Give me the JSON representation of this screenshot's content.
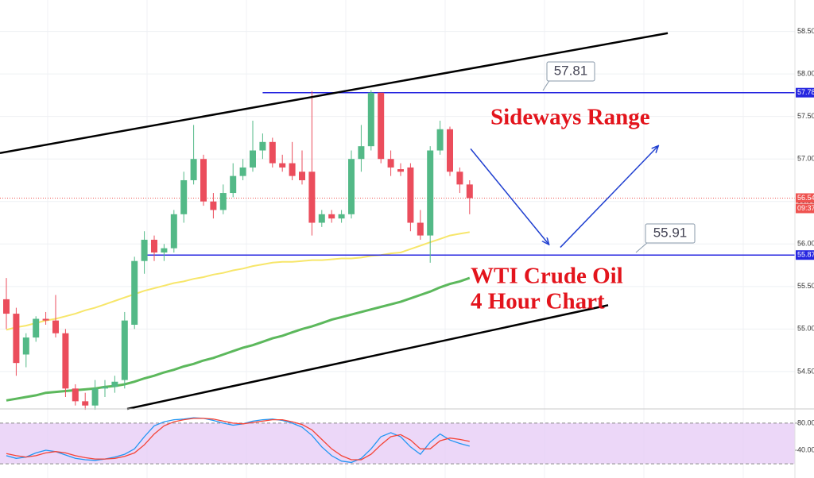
{
  "chart_data": [
    {
      "type": "candlestick",
      "open": [
        55.35,
        55.18,
        54.7,
        54.9,
        55.12,
        55.1,
        54.95,
        54.3,
        54.15,
        54.1,
        54.3,
        54.32,
        54.4,
        55.05,
        55.8,
        56.05,
        55.9,
        55.95,
        56.35,
        56.75,
        57.0,
        56.5,
        56.4,
        56.6,
        56.8,
        56.9,
        57.1,
        57.2,
        56.95,
        56.95,
        56.85,
        56.85,
        56.25,
        56.35,
        56.3,
        56.35,
        57.0,
        57.15,
        57.78,
        57.0,
        56.88,
        56.9,
        56.25,
        56.1,
        57.1,
        57.35,
        56.85,
        56.7
      ],
      "high": [
        55.6,
        55.25,
        54.95,
        55.15,
        55.2,
        55.4,
        55.0,
        54.35,
        54.25,
        54.4,
        54.4,
        54.45,
        55.2,
        55.85,
        56.15,
        56.1,
        56.0,
        56.4,
        56.85,
        57.4,
        57.05,
        56.6,
        56.7,
        56.95,
        57.0,
        57.45,
        57.3,
        57.25,
        57.05,
        57.2,
        57.1,
        57.8,
        56.4,
        56.4,
        56.4,
        57.1,
        57.4,
        57.81,
        57.78,
        57.1,
        56.95,
        56.95,
        56.4,
        57.15,
        57.45,
        57.38,
        56.9,
        56.75
      ],
      "low": [
        55.0,
        54.45,
        54.55,
        54.85,
        55.05,
        54.9,
        54.2,
        54.1,
        54.05,
        54.05,
        54.2,
        54.25,
        54.3,
        55.0,
        55.65,
        55.8,
        55.8,
        55.9,
        56.25,
        56.7,
        56.45,
        56.3,
        56.35,
        56.55,
        56.75,
        56.85,
        57.0,
        56.9,
        56.85,
        56.75,
        56.7,
        56.1,
        56.2,
        56.25,
        56.25,
        56.3,
        56.85,
        57.1,
        56.95,
        56.8,
        56.8,
        56.15,
        56.05,
        55.78,
        57.05,
        56.8,
        56.6,
        56.35
      ],
      "close": [
        55.18,
        54.6,
        54.9,
        55.12,
        55.1,
        54.95,
        54.3,
        54.15,
        54.1,
        54.3,
        54.32,
        54.38,
        55.1,
        55.8,
        56.05,
        55.9,
        55.95,
        56.35,
        56.75,
        57.0,
        56.5,
        56.4,
        56.6,
        56.8,
        56.9,
        57.1,
        57.2,
        56.95,
        56.9,
        56.8,
        56.75,
        56.25,
        56.35,
        56.3,
        56.35,
        57.0,
        57.15,
        57.78,
        57.0,
        56.9,
        56.85,
        56.25,
        56.1,
        57.1,
        57.35,
        56.85,
        56.7,
        56.54
      ],
      "up_color": "#53b987",
      "down_color": "#eb4d5c",
      "moving_averages": [
        {
          "color": "#f7e66a",
          "values": [
            54.99,
            55.02,
            55.04,
            55.07,
            55.1,
            55.12,
            55.15,
            55.18,
            55.22,
            55.25,
            55.29,
            55.33,
            55.37,
            55.41,
            55.45,
            55.48,
            55.51,
            55.54,
            55.56,
            55.59,
            55.61,
            55.64,
            55.66,
            55.69,
            55.71,
            55.74,
            55.76,
            55.78,
            55.79,
            55.79,
            55.8,
            55.81,
            55.81,
            55.82,
            55.83,
            55.83,
            55.84,
            55.86,
            55.87,
            55.89,
            55.9,
            55.94,
            55.98,
            56.02,
            56.06,
            56.1,
            56.12,
            56.14
          ]
        },
        {
          "color": "#5cb85c",
          "values": [
            54.16,
            54.18,
            54.2,
            54.22,
            54.25,
            54.26,
            54.27,
            54.28,
            54.29,
            54.3,
            54.32,
            54.33,
            54.35,
            54.38,
            54.42,
            54.45,
            54.49,
            54.52,
            54.56,
            54.59,
            54.63,
            54.66,
            54.7,
            54.74,
            54.78,
            54.81,
            54.85,
            54.89,
            54.92,
            54.96,
            55.0,
            55.03,
            55.07,
            55.11,
            55.14,
            55.17,
            55.2,
            55.23,
            55.26,
            55.29,
            55.32,
            55.36,
            55.4,
            55.44,
            55.49,
            55.53,
            55.56,
            55.6
          ]
        }
      ],
      "ylim": [
        54.06,
        58.87
      ],
      "yticks": [
        {
          "value": 54.5,
          "label": "54.50"
        },
        {
          "value": 55,
          "label": "55.00"
        },
        {
          "value": 55.5,
          "label": "55.50"
        },
        {
          "value": 56,
          "label": "56.00"
        },
        {
          "value": 56.5,
          "label": "56.50"
        },
        {
          "value": 57,
          "label": "57.00"
        },
        {
          "value": 57.5,
          "label": "57.50"
        },
        {
          "value": 58,
          "label": "58.00"
        },
        {
          "value": 58.5,
          "label": "58.50"
        }
      ],
      "grid": true,
      "last_price": {
        "value": 56.54,
        "countdown": "09:37",
        "color": "#ef5350"
      },
      "horizontal_lines": [
        {
          "value": 57.78,
          "from": 26,
          "color": "#2626e0"
        },
        {
          "value": 55.87,
          "from": 14.3,
          "color": "#2626e0"
        }
      ],
      "trend_lines": [
        {
          "from": [
            -0.65,
            57.07
          ],
          "to": [
            67.1,
            58.48
          ],
          "color": "#000000"
        },
        {
          "from": [
            12.26,
            54.06
          ],
          "to": [
            61.05,
            55.28
          ],
          "color": "#000000"
        }
      ],
      "arrows": [
        {
          "from": [
            47.1,
            57.12
          ],
          "to": [
            55,
            56.0
          ],
          "color": "#1f3fd0"
        },
        {
          "from": [
            56.2,
            55.96
          ],
          "to": [
            66.1,
            57.15
          ],
          "color": "#1f3fd0"
        }
      ],
      "callouts": [
        57.81,
        55.91
      ],
      "annotations": [
        "Sideways Range",
        "WTI Crude Oil",
        "4 Hour Chart"
      ],
      "annotation_color": "#e3141c"
    },
    {
      "type": "rsi",
      "series": [
        {
          "color": "#2196f3",
          "values": [
            32,
            28,
            30,
            36,
            40,
            38,
            33,
            28,
            26,
            25,
            27,
            30,
            34,
            42,
            60,
            76,
            82,
            85,
            86,
            88,
            87,
            84,
            80,
            77,
            79,
            83,
            85,
            86,
            84,
            80,
            74,
            62,
            45,
            32,
            24,
            22,
            28,
            42,
            60,
            66,
            60,
            45,
            34,
            52,
            64,
            55,
            50,
            46
          ]
        },
        {
          "color": "#f44336",
          "values": [
            35,
            32,
            30,
            32,
            36,
            38,
            36,
            32,
            29,
            27,
            27,
            28,
            31,
            36,
            48,
            64,
            76,
            82,
            85,
            87,
            87,
            86,
            83,
            80,
            79,
            81,
            83,
            85,
            85,
            82,
            78,
            70,
            56,
            42,
            32,
            26,
            26,
            34,
            48,
            60,
            63,
            55,
            42,
            42,
            54,
            58,
            56,
            53
          ]
        }
      ],
      "ylim": [
        -1,
        101
      ],
      "yticks": [
        {
          "value": 80,
          "label": "80.00"
        },
        {
          "value": 40,
          "label": "40.00"
        }
      ],
      "band": [
        20,
        80
      ],
      "band_color": "#e6c9f5"
    }
  ]
}
